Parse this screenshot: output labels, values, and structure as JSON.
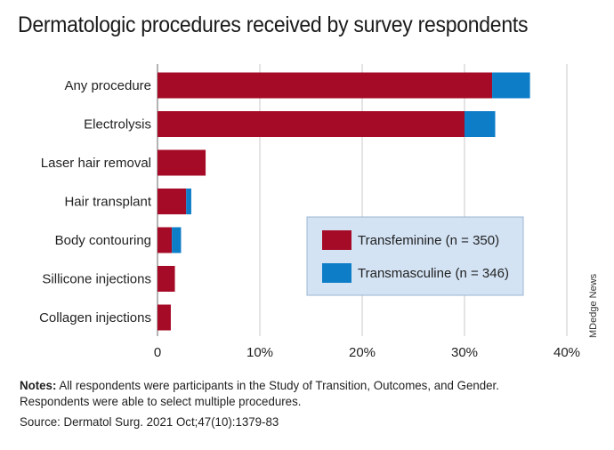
{
  "title": "Dermatologic procedures received by survey respondents",
  "notes_label": "Notes:",
  "notes_text": " All respondents were participants in the Study of Transition, Outcomes, and Gender. Respondents were able to select multiple procedures.",
  "source_label": "Source:",
  "source_text": " Dermatol Surg. 2021 Oct;47(10):1379-83",
  "credit": "MDedge News",
  "chart_data": {
    "type": "bar",
    "orientation": "horizontal",
    "stacked": true,
    "categories": [
      "Any procedure",
      "Electrolysis",
      "Laser hair removal",
      "Hair transplant",
      "Body contouring",
      "Sillicone injections",
      "Collagen injections"
    ],
    "series": [
      {
        "name": "Transfeminine (n = 350)",
        "color": "#a50b26",
        "values": [
          32.7,
          30.0,
          4.7,
          2.8,
          1.4,
          1.7,
          1.3
        ]
      },
      {
        "name": "Transmasculine (n = 346)",
        "color": "#0d7dc8",
        "values": [
          3.7,
          3.0,
          0.0,
          0.5,
          0.9,
          0.0,
          0.0
        ]
      }
    ],
    "xlim": [
      0,
      40
    ],
    "xticks": [
      0,
      10,
      20,
      30,
      40
    ],
    "xtick_labels": [
      "0",
      "10%",
      "20%",
      "30%",
      "40%"
    ],
    "grid": "vertical",
    "grid_color": "#c8c8c8",
    "legend_position": "right-center",
    "legend_bg": "#d3e3f4"
  }
}
